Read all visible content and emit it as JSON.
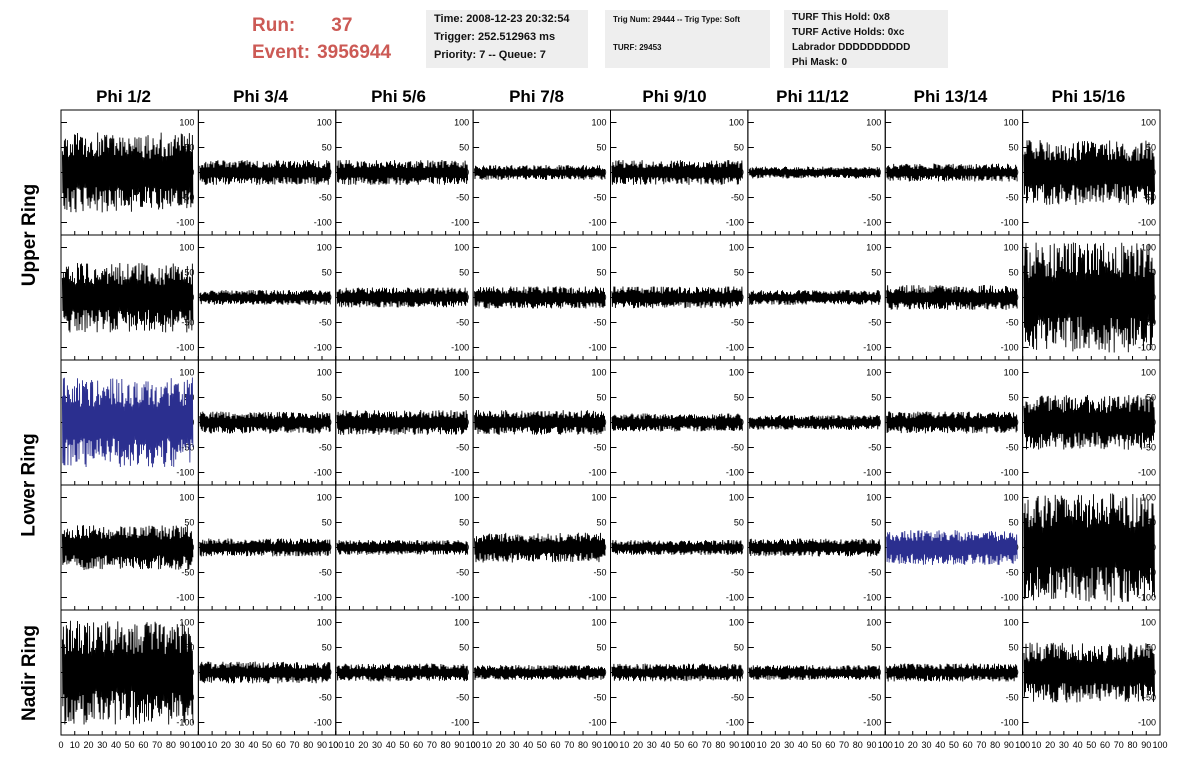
{
  "header": {
    "run_label": "Run:",
    "run_value": "37",
    "event_label": "Event:",
    "event_value": "3956944"
  },
  "info_time": {
    "time": "Time: 2008-12-23 20:32:54",
    "trigger": "Trigger: 252.512963 ms",
    "priority": "Priority: 7 -- Queue: 7"
  },
  "info_trig": {
    "trig": "Trig Num: 29444 -- Trig Type: Soft",
    "turf": "TURF: 29453"
  },
  "info_turf": {
    "hold": "TURF This Hold: 0x8",
    "active": "TURF Active Holds: 0xc",
    "labrador": "Labrador DDDDDDDDDD",
    "phimask": "Phi Mask: 0"
  },
  "columns": [
    "Phi 1/2",
    "Phi 3/4",
    "Phi 5/6",
    "Phi 7/8",
    "Phi 9/10",
    "Phi 11/12",
    "Phi 13/14",
    "Phi 15/16"
  ],
  "rows": [
    "Upper Ring",
    "Lower Ring",
    "Nadir Ring"
  ],
  "colors": {
    "trace": "#000000",
    "highlight": "#2b2f8f",
    "header": "#cc5a55",
    "infobox": "#eeeeee"
  },
  "chart_data": {
    "type": "line",
    "xlim": [
      0,
      100
    ],
    "ylim": [
      -125,
      125
    ],
    "x_ticks": [
      0,
      10,
      20,
      30,
      40,
      50,
      60,
      70,
      80,
      90,
      100
    ],
    "x_tick_labels": [
      "0",
      "10",
      "20",
      "30",
      "40",
      "50",
      "60",
      "70",
      "80",
      "90",
      "100"
    ],
    "y_ticks": [
      -100,
      -50,
      0,
      50,
      100
    ],
    "y_tick_labels": [
      "-100",
      "-50",
      "0",
      "50",
      "100"
    ],
    "channel_amplitudes": [
      [
        80,
        25,
        25,
        15,
        25,
        12,
        18,
        65
      ],
      [
        70,
        15,
        20,
        22,
        22,
        15,
        25,
        110
      ],
      [
        90,
        22,
        25,
        25,
        18,
        15,
        22,
        55
      ],
      [
        45,
        18,
        15,
        30,
        15,
        18,
        35,
        110
      ],
      [
        105,
        22,
        18,
        15,
        18,
        15,
        18,
        60
      ]
    ],
    "highlighted_channels": [
      [
        2,
        0
      ],
      [
        3,
        6
      ]
    ]
  }
}
